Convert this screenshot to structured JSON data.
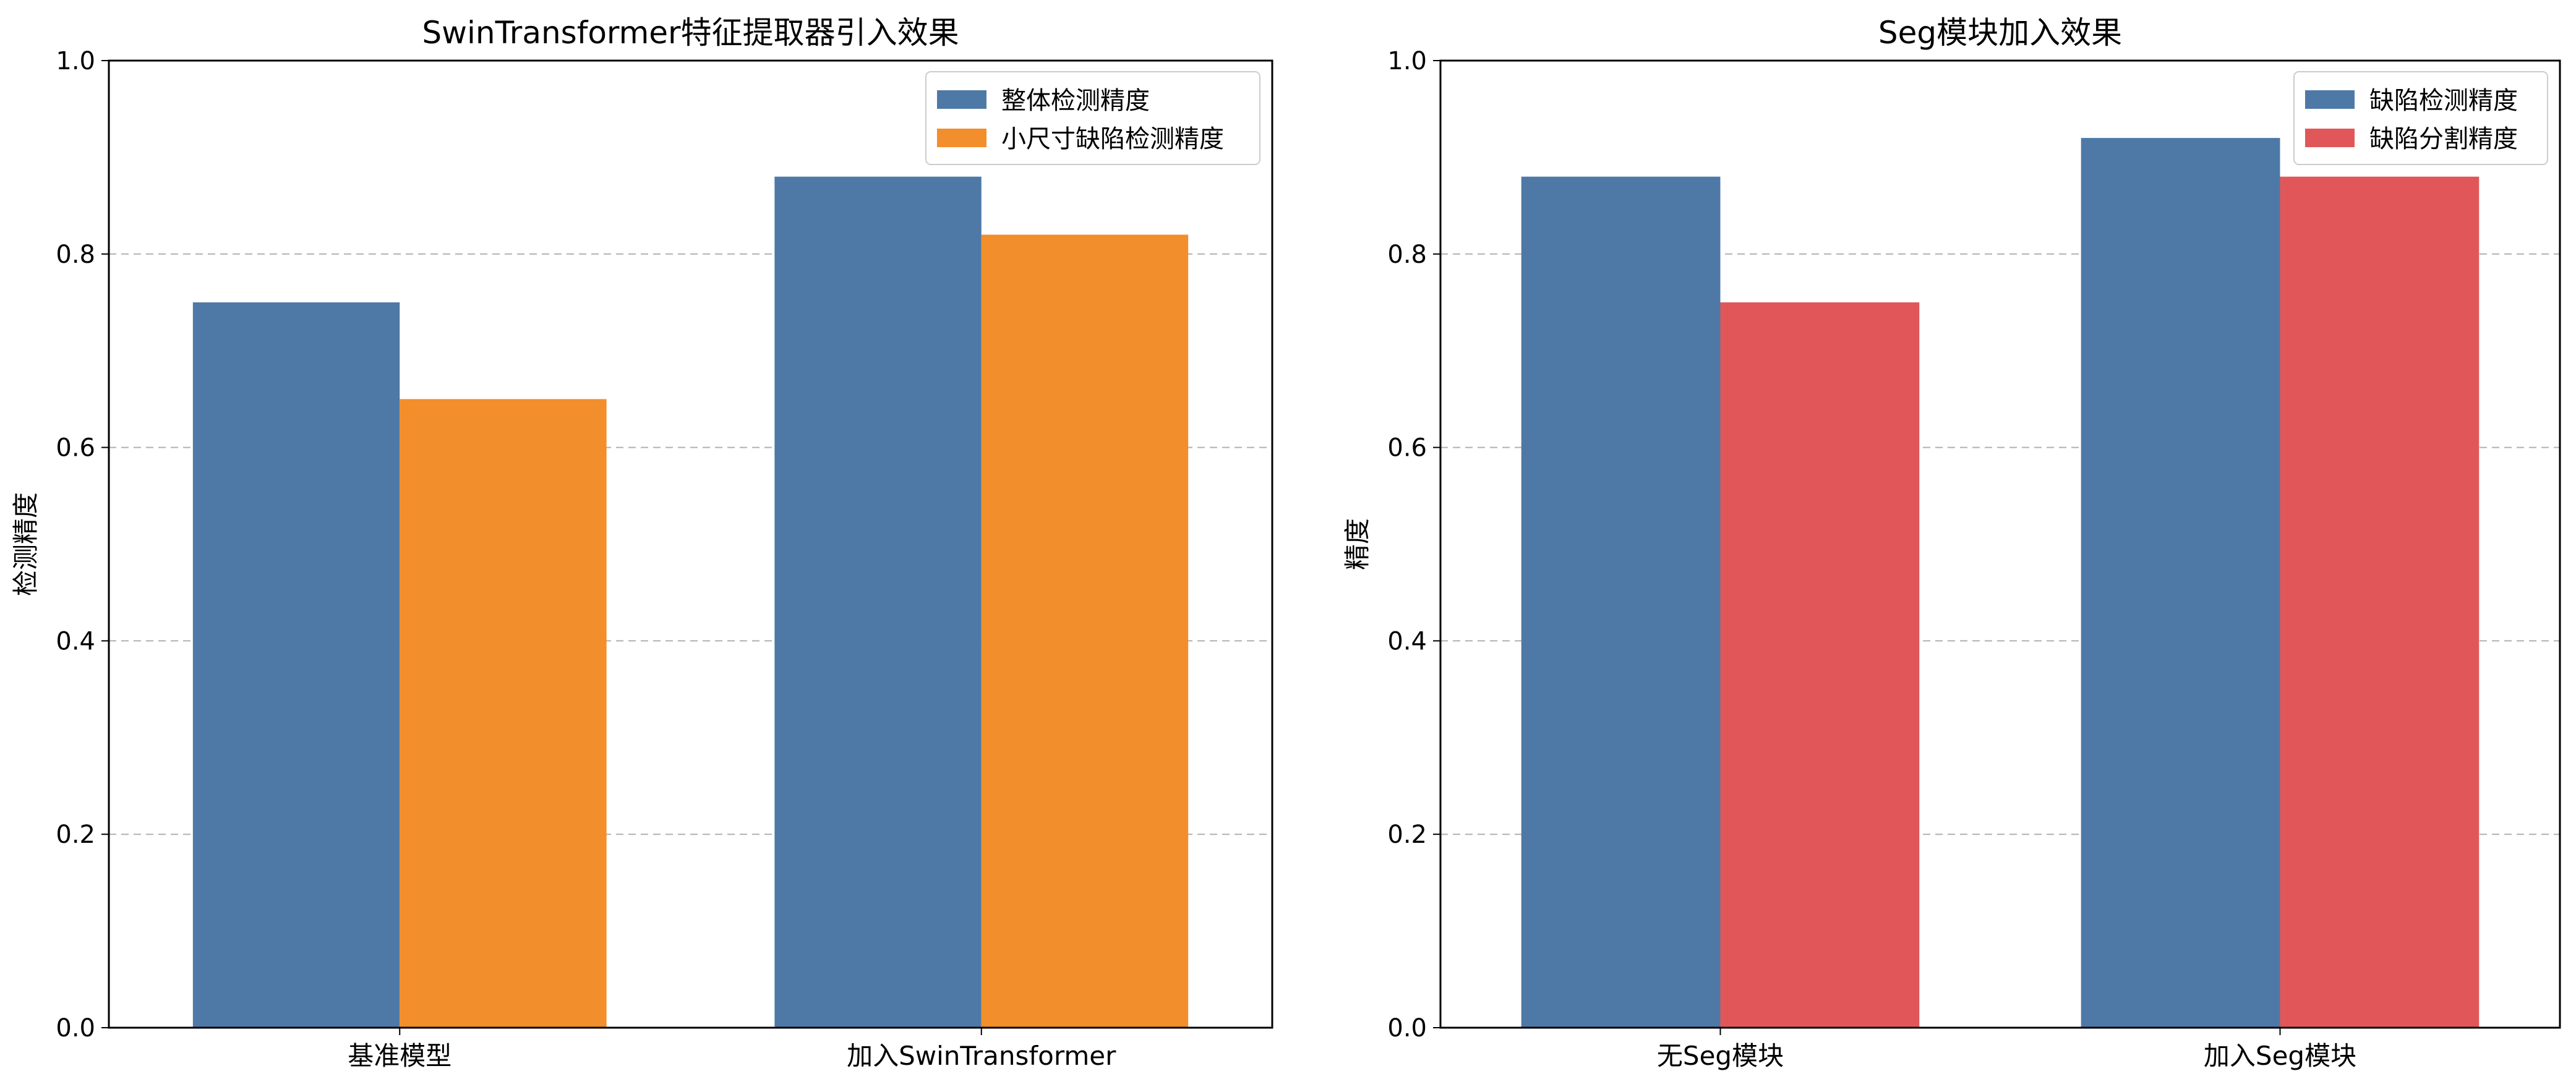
{
  "chart_data": [
    {
      "type": "bar",
      "title": "SwinTransformer特征提取器引入效果",
      "xlabel": "",
      "ylabel": "检测精度",
      "ylim": [
        0,
        1.0
      ],
      "yticks": [
        "0.0",
        "0.2",
        "0.4",
        "0.6",
        "0.8",
        "1.0"
      ],
      "grid": "horizontal-dashed",
      "legend": "top-right",
      "categories": [
        "基准模型",
        "加入SwinTransformer"
      ],
      "series": [
        {
          "name": "整体检测精度",
          "color": "#4e79a7",
          "values": [
            0.75,
            0.88
          ]
        },
        {
          "name": "小尺寸缺陷检测精度",
          "color": "#f28e2b",
          "values": [
            0.65,
            0.82
          ]
        }
      ]
    },
    {
      "type": "bar",
      "title": "Seg模块加入效果",
      "xlabel": "",
      "ylabel": "精度",
      "ylim": [
        0,
        1.0
      ],
      "yticks": [
        "0.0",
        "0.2",
        "0.4",
        "0.6",
        "0.8",
        "1.0"
      ],
      "grid": "horizontal-dashed",
      "legend": "top-right",
      "categories": [
        "无Seg模块",
        "加入Seg模块"
      ],
      "series": [
        {
          "name": "缺陷检测精度",
          "color": "#4e79a7",
          "values": [
            0.88,
            0.92
          ]
        },
        {
          "name": "缺陷分割精度",
          "color": "#e15759",
          "values": [
            0.75,
            0.88
          ]
        }
      ]
    }
  ]
}
